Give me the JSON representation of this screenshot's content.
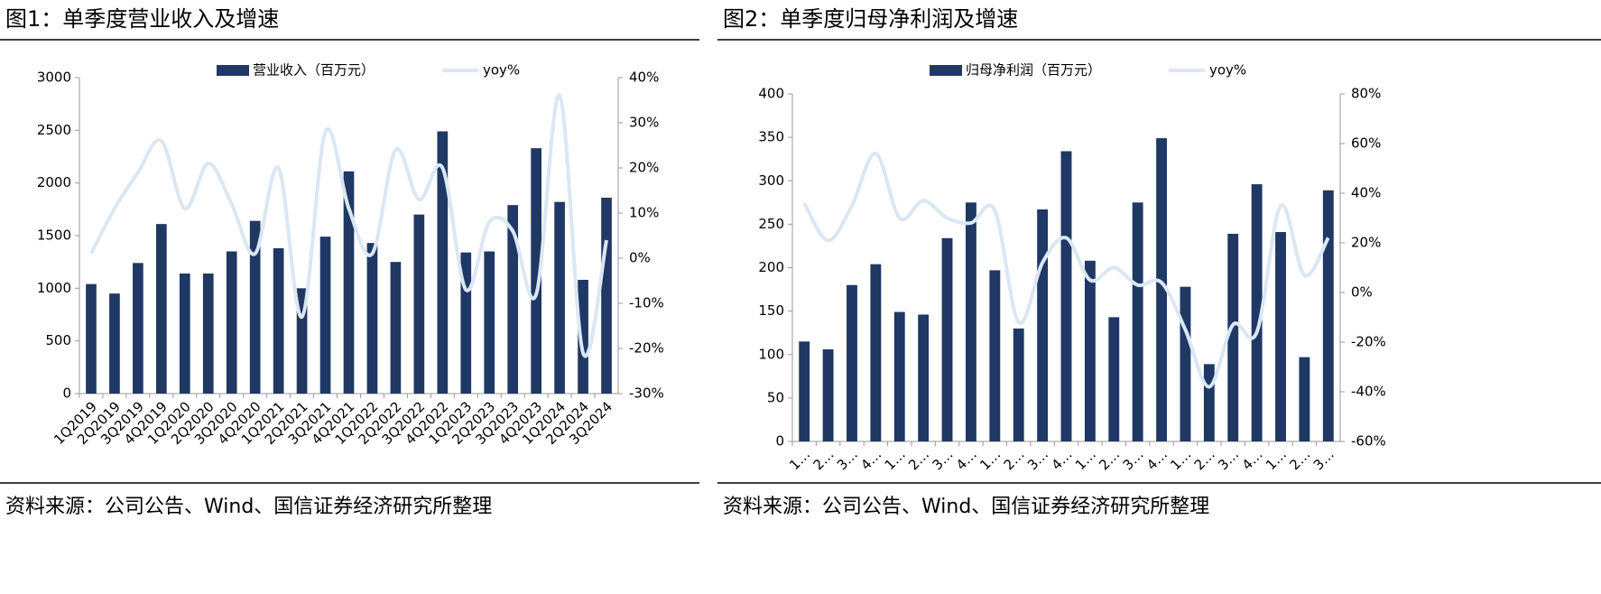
{
  "chart_data": [
    {
      "type": "bar",
      "title": "图1：单季度营业收入及增速",
      "source": "资料来源：公司公告、Wind、国信证券经济研究所整理",
      "categories": [
        "1Q2019",
        "2Q2019",
        "3Q2019",
        "4Q2019",
        "1Q2020",
        "2Q2020",
        "3Q2020",
        "4Q2020",
        "1Q2021",
        "2Q2021",
        "3Q2021",
        "4Q2021",
        "1Q2022",
        "2Q2022",
        "3Q2022",
        "4Q2022",
        "1Q2023",
        "2Q2023",
        "3Q2023",
        "4Q2023",
        "1Q2024",
        "2Q2024",
        "3Q2024"
      ],
      "series": [
        {
          "name": "营业收入（百万元）",
          "type": "bar",
          "color": "#1f3864",
          "values": [
            1040,
            950,
            1240,
            1610,
            1140,
            1140,
            1350,
            1640,
            1380,
            1000,
            1490,
            2110,
            1430,
            1250,
            1700,
            2490,
            1340,
            1350,
            1790,
            2330,
            1820,
            1080,
            1860
          ]
        },
        {
          "name": "yoy%",
          "type": "line",
          "axis": "y2",
          "color": "#dbe7f3",
          "values": [
            1,
            11,
            19,
            26,
            11,
            21,
            12,
            1,
            20,
            -13,
            28,
            11,
            1,
            24,
            13,
            20,
            -7,
            8,
            6,
            -8,
            36,
            -21,
            4
          ]
        }
      ],
      "ylim": [
        0,
        3000
      ],
      "yticks": [
        0,
        500,
        1000,
        1500,
        2000,
        2500,
        3000
      ],
      "y2lim": [
        -30,
        40
      ],
      "y2ticks": [
        {
          "value": -30,
          "label": "-30%"
        },
        {
          "value": -20,
          "label": "-20%"
        },
        {
          "value": -10,
          "label": "-10%"
        },
        {
          "value": 0,
          "label": "0%"
        },
        {
          "value": 10,
          "label": "10%"
        },
        {
          "value": 20,
          "label": "20%"
        },
        {
          "value": 30,
          "label": "30%"
        },
        {
          "value": 40,
          "label": "40%"
        }
      ]
    },
    {
      "type": "bar",
      "title": "图2：单季度归母净利润及增速",
      "source": "资料来源：公司公告、Wind、国信证券经济研究所整理",
      "categories": [
        "1…",
        "2…",
        "3…",
        "4…",
        "1…",
        "2…",
        "3…",
        "4…",
        "1…",
        "2…",
        "3…",
        "4…",
        "1…",
        "2…",
        "3…",
        "4…",
        "1…",
        "2…",
        "3…",
        "4…",
        "1…",
        "2…",
        "3…"
      ],
      "series": [
        {
          "name": "归母净利润（百万元）",
          "type": "bar",
          "color": "#1f3864",
          "values": [
            115,
            106,
            180,
            204,
            149,
            146,
            234,
            275,
            197,
            130,
            267,
            334,
            208,
            143,
            275,
            349,
            178,
            89,
            239,
            296,
            241,
            97,
            289
          ]
        },
        {
          "name": "yoy%",
          "type": "line",
          "axis": "y2",
          "color": "#dbe7f3",
          "values": [
            36,
            21,
            35,
            56,
            30,
            37,
            30,
            28,
            33,
            -12,
            12,
            22,
            5,
            10,
            3,
            4,
            -15,
            -38,
            -13,
            -16,
            35,
            7,
            22
          ]
        }
      ],
      "ylim": [
        0,
        400
      ],
      "yticks": [
        0,
        50,
        100,
        150,
        200,
        250,
        300,
        350,
        400
      ],
      "y2lim": [
        -60,
        80
      ],
      "y2ticks": [
        {
          "value": -60,
          "label": "-60%"
        },
        {
          "value": -40,
          "label": "-40%"
        },
        {
          "value": -20,
          "label": "-20%"
        },
        {
          "value": 0,
          "label": "0%"
        },
        {
          "value": 20,
          "label": "20%"
        },
        {
          "value": 40,
          "label": "40%"
        },
        {
          "value": 60,
          "label": "60%"
        },
        {
          "value": 80,
          "label": "80%"
        }
      ]
    }
  ]
}
